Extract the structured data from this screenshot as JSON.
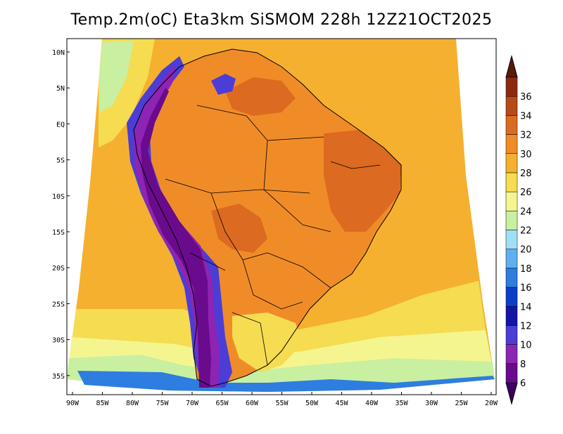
{
  "title": "Temp.2m(oC) Eta3km SiSMOM 228h 12Z21OCT2025",
  "axes": {
    "lat_labels": [
      "10N",
      "5N",
      "EQ",
      "5S",
      "10S",
      "15S",
      "20S",
      "25S",
      "30S",
      "35S"
    ],
    "lon_labels": [
      "90W",
      "85W",
      "80W",
      "75W",
      "70W",
      "65W",
      "60W",
      "55W",
      "50W",
      "45W",
      "40W",
      "35W",
      "30W",
      "25W",
      "20W"
    ]
  },
  "colorbar": {
    "labels": [
      "6",
      "8",
      "10",
      "12",
      "14",
      "16",
      "18",
      "20",
      "22",
      "24",
      "26",
      "28",
      "30",
      "32",
      "34",
      "36"
    ],
    "colors": [
      "#6a0a8c",
      "#8e24b3",
      "#4b3dd6",
      "#1414a8",
      "#0a3fc8",
      "#2e7de0",
      "#5fb0f0",
      "#9fe0f5",
      "#c8f0a0",
      "#f5f590",
      "#f5dc50",
      "#f5b030",
      "#f08c28",
      "#dc6a20",
      "#b84a18",
      "#8c2a10"
    ],
    "lower_arrow_color": "#3c0060",
    "upper_arrow_color": "#5a1a08"
  },
  "field_colors": {
    "ocean_warm": "#f5b030",
    "ocean_mild": "#f5dc50",
    "ocean_cool": "#f5f590",
    "ocean_cold": "#c8f0a0",
    "continent_hot": "#f08c28",
    "continent_very_hot": "#dc6a20",
    "andes_high": "#6a0a8c",
    "andes_mid": "#8e24b3",
    "andes_low": "#4b3dd6",
    "south_cold": "#2e7de0"
  }
}
